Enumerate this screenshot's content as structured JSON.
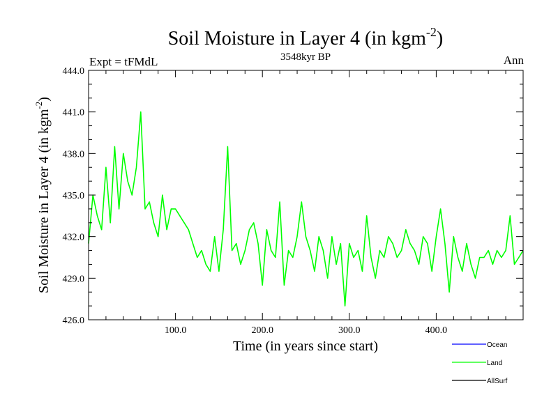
{
  "chart_data": {
    "type": "line",
    "title_main": "Soil Moisture in Layer 4 (in kgm",
    "title_sup": "-2",
    "title_close": ")",
    "subtitle": "3548kyr BP",
    "left_label": "Expt = tFMdL",
    "right_label": "Ann",
    "xlabel": "Time (in years since start)",
    "ylabel_main": "Soil Moisture in Layer 4 (in kgm",
    "ylabel_sup": "-2",
    "ylabel_close": ")",
    "xlim": [
      0,
      500
    ],
    "ylim": [
      426,
      444
    ],
    "x_ticks": [
      100,
      200,
      300,
      400
    ],
    "x_tick_labels": [
      "100.0",
      "200.0",
      "300.0",
      "400.0"
    ],
    "y_ticks": [
      426,
      429,
      432,
      435,
      438,
      441,
      444
    ],
    "y_tick_labels": [
      "426.0",
      "429.0",
      "432.0",
      "435.0",
      "438.0",
      "441.0",
      "444.0"
    ],
    "legend": [
      {
        "name": "Ocean",
        "color": "#0000ff"
      },
      {
        "name": "Land",
        "color": "#00ff00"
      },
      {
        "name": "AllSurf",
        "color": "#000000"
      }
    ],
    "series": [
      {
        "name": "Land",
        "color": "#00ff00",
        "x": [
          0,
          5,
          10,
          15,
          20,
          25,
          30,
          35,
          40,
          45,
          50,
          55,
          60,
          65,
          70,
          75,
          80,
          85,
          90,
          95,
          100,
          105,
          110,
          115,
          120,
          125,
          130,
          135,
          140,
          145,
          150,
          155,
          160,
          165,
          170,
          175,
          180,
          185,
          190,
          195,
          200,
          205,
          210,
          215,
          220,
          225,
          230,
          235,
          240,
          245,
          250,
          255,
          260,
          265,
          270,
          275,
          280,
          285,
          290,
          295,
          300,
          305,
          310,
          315,
          320,
          325,
          330,
          335,
          340,
          345,
          350,
          355,
          360,
          365,
          370,
          375,
          380,
          385,
          390,
          395,
          400,
          405,
          410,
          415,
          420,
          425,
          430,
          435,
          440,
          445,
          450,
          455,
          460,
          465,
          470,
          475,
          480,
          485,
          490,
          495,
          500
        ],
        "values": [
          431.5,
          435.0,
          433.5,
          432.5,
          437.0,
          433.0,
          438.5,
          434.0,
          438.0,
          436.0,
          435.0,
          437.0,
          441.0,
          434.0,
          434.5,
          433.0,
          432.0,
          435.0,
          432.5,
          434.0,
          434.0,
          433.5,
          433.0,
          432.5,
          431.5,
          430.5,
          431.0,
          430.0,
          429.5,
          432.0,
          429.5,
          432.5,
          438.5,
          431.0,
          431.5,
          430.0,
          431.0,
          432.5,
          433.0,
          431.5,
          428.5,
          432.5,
          431.0,
          430.5,
          434.5,
          428.5,
          431.0,
          430.5,
          432.0,
          434.5,
          432.0,
          431.0,
          429.5,
          432.0,
          431.0,
          429.0,
          432.0,
          430.0,
          431.5,
          427.0,
          431.5,
          430.5,
          431.0,
          429.5,
          433.5,
          430.5,
          429.0,
          431.0,
          430.5,
          432.0,
          431.5,
          430.5,
          431.0,
          432.5,
          431.5,
          431.0,
          430.0,
          432.0,
          431.5,
          429.5,
          432.0,
          434.0,
          431.5,
          428.0,
          432.0,
          430.5,
          429.5,
          431.5,
          430.0,
          429.0,
          430.5,
          430.5,
          431.0,
          430.0,
          431.0,
          430.5,
          431.0,
          433.5,
          430.0,
          430.5,
          431.0
        ]
      }
    ]
  }
}
